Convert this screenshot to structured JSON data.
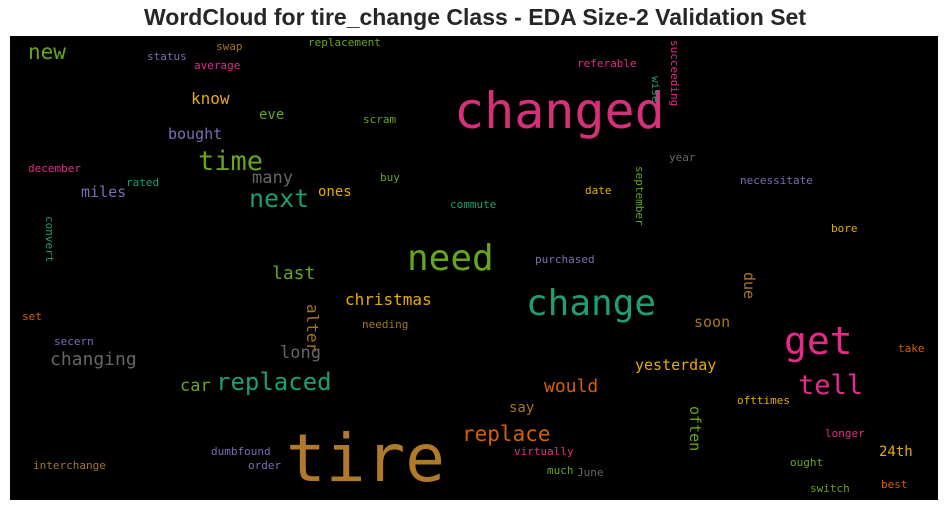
{
  "chart_data": {
    "type": "wordcloud",
    "title": "WordCloud for tire_change Class - EDA Size-2 Validation Set",
    "background": "#000000",
    "words": [
      {
        "text": "tire",
        "color": "#b07a2a",
        "weight": 66
      },
      {
        "text": "changed",
        "color": "#d6307a",
        "weight": 50
      },
      {
        "text": "change",
        "color": "#1e9e77",
        "weight": 36
      },
      {
        "text": "need",
        "color": "#66a61e",
        "weight": 36
      },
      {
        "text": "get",
        "color": "#e7298a",
        "weight": 38
      },
      {
        "text": "tell",
        "color": "#e7298a",
        "weight": 27
      },
      {
        "text": "time",
        "color": "#66a61e",
        "weight": 27
      },
      {
        "text": "next",
        "color": "#1b9e77",
        "weight": 25
      },
      {
        "text": "replaced",
        "color": "#1b9e77",
        "weight": 24
      },
      {
        "text": "replace",
        "color": "#d95f02",
        "weight": 21
      },
      {
        "text": "new",
        "color": "#66a61e",
        "weight": 21
      },
      {
        "text": "would",
        "color": "#d95f02",
        "weight": 18
      },
      {
        "text": "last",
        "color": "#66a61e",
        "weight": 18
      },
      {
        "text": "changing",
        "color": "#666666",
        "weight": 18
      },
      {
        "text": "many",
        "color": "#666666",
        "weight": 17
      },
      {
        "text": "long",
        "color": "#666666",
        "weight": 17
      },
      {
        "text": "car",
        "color": "#66a61e",
        "weight": 17
      },
      {
        "text": "alter",
        "color": "#a6761d",
        "weight": 16
      },
      {
        "text": "know",
        "color": "#e6ab02",
        "weight": 16
      },
      {
        "text": "christmas",
        "color": "#e6ab02",
        "weight": 16
      },
      {
        "text": "yesterday",
        "color": "#e6ab02",
        "weight": 15
      },
      {
        "text": "soon",
        "color": "#a6761d",
        "weight": 15
      },
      {
        "text": "due",
        "color": "#a6761d",
        "weight": 15
      },
      {
        "text": "often",
        "color": "#66a61e",
        "weight": 15
      },
      {
        "text": "bought",
        "color": "#7570b3",
        "weight": 15
      },
      {
        "text": "miles",
        "color": "#7570b3",
        "weight": 15
      },
      {
        "text": "ones",
        "color": "#e6ab02",
        "weight": 14
      },
      {
        "text": "eve",
        "color": "#66a61e",
        "weight": 14
      },
      {
        "text": "say",
        "color": "#a6761d",
        "weight": 14
      },
      {
        "text": "24th",
        "color": "#e6ab02",
        "weight": 14
      },
      {
        "text": "scram",
        "color": "#66a61e",
        "weight": 11
      },
      {
        "text": "buy",
        "color": "#66a61e",
        "weight": 11
      },
      {
        "text": "commute",
        "color": "#1b9e77",
        "weight": 11
      },
      {
        "text": "date",
        "color": "#e6ab02",
        "weight": 11
      },
      {
        "text": "september",
        "color": "#66a61e",
        "weight": 11
      },
      {
        "text": "year",
        "color": "#666666",
        "weight": 11
      },
      {
        "text": "necessitate",
        "color": "#7570b3",
        "weight": 11
      },
      {
        "text": "bore",
        "color": "#e6ab02",
        "weight": 11
      },
      {
        "text": "purchased",
        "color": "#7570b3",
        "weight": 11
      },
      {
        "text": "needing",
        "color": "#a6761d",
        "weight": 11
      },
      {
        "text": "take",
        "color": "#d95f02",
        "weight": 11
      },
      {
        "text": "ofttimes",
        "color": "#e6ab02",
        "weight": 11
      },
      {
        "text": "longer",
        "color": "#e7298a",
        "weight": 11
      },
      {
        "text": "ought",
        "color": "#66a61e",
        "weight": 11
      },
      {
        "text": "switch",
        "color": "#66a61e",
        "weight": 11
      },
      {
        "text": "best",
        "color": "#d95f02",
        "weight": 11
      },
      {
        "text": "virtually",
        "color": "#e7298a",
        "weight": 11
      },
      {
        "text": "much",
        "color": "#66a61e",
        "weight": 11
      },
      {
        "text": "June",
        "color": "#666666",
        "weight": 11
      },
      {
        "text": "order",
        "color": "#7570b3",
        "weight": 11
      },
      {
        "text": "dumbfound",
        "color": "#7570b3",
        "weight": 11
      },
      {
        "text": "interchange",
        "color": "#a6761d",
        "weight": 11
      },
      {
        "text": "secern",
        "color": "#7570b3",
        "weight": 11
      },
      {
        "text": "set",
        "color": "#d95f02",
        "weight": 11
      },
      {
        "text": "convert",
        "color": "#1b9e77",
        "weight": 11
      },
      {
        "text": "december",
        "color": "#e7298a",
        "weight": 11
      },
      {
        "text": "rated",
        "color": "#1b9e77",
        "weight": 11
      },
      {
        "text": "status",
        "color": "#7570b3",
        "weight": 11
      },
      {
        "text": "swap",
        "color": "#a6761d",
        "weight": 11
      },
      {
        "text": "average",
        "color": "#e7298a",
        "weight": 11
      },
      {
        "text": "replacement",
        "color": "#66a61e",
        "weight": 11
      },
      {
        "text": "referable",
        "color": "#e7298a",
        "weight": 11
      },
      {
        "text": "wise",
        "color": "#1b9e77",
        "weight": 11
      },
      {
        "text": "succeeding",
        "color": "#e7298a",
        "weight": 11
      }
    ]
  }
}
